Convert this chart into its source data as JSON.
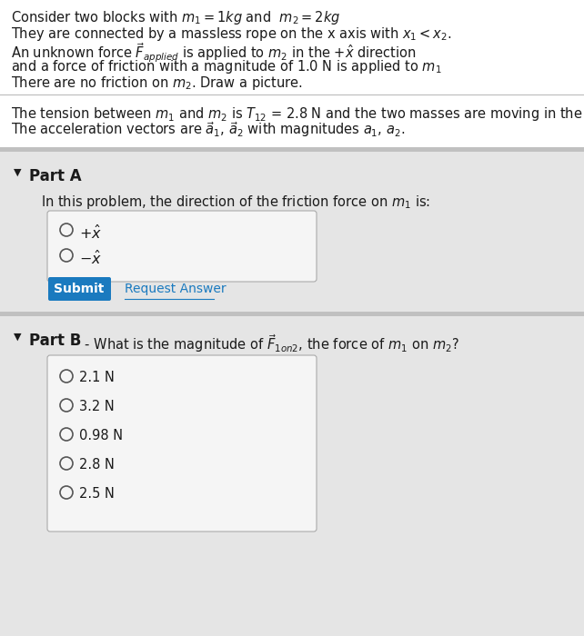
{
  "bg_color": "#d9d9d9",
  "white_bg": "#ffffff",
  "submit_color": "#1a7abf",
  "text_color": "#1a1a1a",
  "part_a_label": "Part A",
  "part_a_question": "In this problem, the direction of the friction force on $m_1$ is:",
  "part_a_options": [
    "$+\\hat{x}$",
    "$-\\hat{x}$"
  ],
  "submit_label": "Submit",
  "request_answer_label": "Request Answer",
  "part_b_label": "Part B",
  "part_b_question": " - What is the magnitude of $\\vec{F}_{1on2}$, the force of $m_1$ on $m_2$?",
  "part_b_options": [
    "2.1 N",
    "3.2 N",
    "0.98 N",
    "2.8 N",
    "2.5 N"
  ]
}
